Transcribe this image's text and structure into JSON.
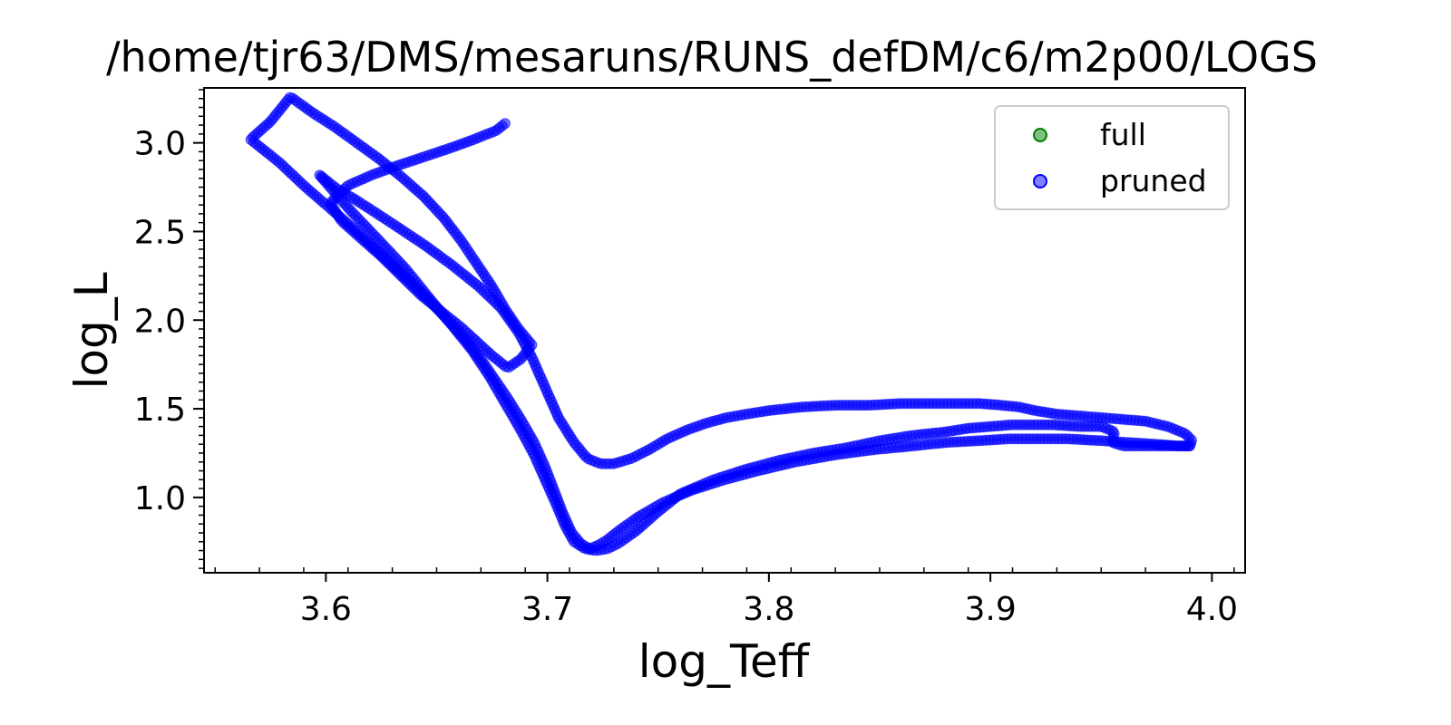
{
  "chart_data": {
    "type": "scatter",
    "title": "/home/tjr63/DMS/mesaruns/RUNS_defDM/c6/m2p00/LOGS",
    "xlabel": "log_Teff",
    "ylabel": "log_L",
    "xlim": [
      3.545,
      4.015
    ],
    "ylim": [
      0.575,
      3.31
    ],
    "x_ticks": [
      "3.6",
      "3.7",
      "3.8",
      "3.9",
      "4.0"
    ],
    "y_ticks": [
      "1.0",
      "1.5",
      "2.0",
      "2.5",
      "3.0"
    ],
    "grid": false,
    "legend_position": "top-right",
    "series": [
      {
        "name": "full",
        "color": "#008000",
        "visible_points": false,
        "x": [],
        "y": []
      },
      {
        "name": "pruned",
        "color": "#0000ff",
        "path_log_Teff": [
          3.99,
          3.988,
          3.984,
          3.978,
          3.97,
          3.96,
          3.955,
          3.956,
          3.95,
          3.94,
          3.928,
          3.918,
          3.91,
          3.9,
          3.89,
          3.88,
          3.865,
          3.85,
          3.835,
          3.82,
          3.805,
          3.79,
          3.775,
          3.76,
          3.75,
          3.74,
          3.732,
          3.727,
          3.722,
          3.717,
          3.712,
          3.708,
          3.704,
          3.699,
          3.694,
          3.688,
          3.681,
          3.674,
          3.666,
          3.657,
          3.647,
          3.636,
          3.624,
          3.611,
          3.597,
          3.605,
          3.612,
          3.622,
          3.633,
          3.645,
          3.657,
          3.669,
          3.679,
          3.687,
          3.693,
          3.699,
          3.705,
          3.712,
          3.718,
          3.724,
          3.73,
          3.738,
          3.746,
          3.754,
          3.763,
          3.772,
          3.781,
          3.79,
          3.8,
          3.815,
          3.83,
          3.845,
          3.86,
          3.872,
          3.884,
          3.895,
          3.905,
          3.913,
          3.92,
          3.93,
          3.94,
          3.95,
          3.96,
          3.97,
          3.98,
          3.988,
          3.991,
          3.99,
          3.985,
          3.975,
          3.962,
          3.95,
          3.935,
          3.92,
          3.908,
          3.895,
          3.88,
          3.865,
          3.848,
          3.83,
          3.812,
          3.795,
          3.78,
          3.765,
          3.752,
          3.741,
          3.732,
          3.727,
          3.723,
          3.719,
          3.715,
          3.711,
          3.707,
          3.703,
          3.699,
          3.694,
          3.688,
          3.682,
          3.676,
          3.67,
          3.663,
          3.655,
          3.646,
          3.636,
          3.625,
          3.614,
          3.602,
          3.59,
          3.579,
          3.566,
          3.575,
          3.584,
          3.594,
          3.604,
          3.614,
          3.624,
          3.634,
          3.644,
          3.653,
          3.661,
          3.668,
          3.675,
          3.681,
          3.687,
          3.693,
          3.688,
          3.682,
          3.675,
          3.668,
          3.661,
          3.652,
          3.643,
          3.634,
          3.625,
          3.616,
          3.607,
          3.602,
          3.61,
          3.621,
          3.632,
          3.644,
          3.656,
          3.667,
          3.677,
          3.681
        ],
        "path_log_L": [
          1.29,
          1.29,
          1.29,
          1.29,
          1.29,
          1.29,
          1.31,
          1.37,
          1.4,
          1.4,
          1.41,
          1.41,
          1.41,
          1.4,
          1.39,
          1.37,
          1.35,
          1.32,
          1.28,
          1.25,
          1.21,
          1.16,
          1.1,
          1.02,
          0.92,
          0.81,
          0.74,
          0.71,
          0.7,
          0.71,
          0.75,
          0.84,
          0.96,
          1.1,
          1.24,
          1.38,
          1.53,
          1.68,
          1.83,
          1.97,
          2.12,
          2.29,
          2.45,
          2.62,
          2.82,
          2.74,
          2.69,
          2.61,
          2.52,
          2.42,
          2.31,
          2.19,
          2.07,
          1.93,
          1.79,
          1.62,
          1.45,
          1.31,
          1.22,
          1.19,
          1.19,
          1.22,
          1.27,
          1.33,
          1.38,
          1.42,
          1.45,
          1.47,
          1.49,
          1.51,
          1.52,
          1.52,
          1.53,
          1.53,
          1.53,
          1.53,
          1.52,
          1.51,
          1.49,
          1.47,
          1.46,
          1.45,
          1.44,
          1.43,
          1.4,
          1.36,
          1.32,
          1.29,
          1.29,
          1.3,
          1.31,
          1.32,
          1.33,
          1.33,
          1.33,
          1.32,
          1.31,
          1.29,
          1.27,
          1.24,
          1.2,
          1.15,
          1.1,
          1.04,
          0.97,
          0.89,
          0.81,
          0.76,
          0.73,
          0.71,
          0.74,
          0.8,
          0.91,
          1.04,
          1.17,
          1.31,
          1.44,
          1.56,
          1.67,
          1.78,
          1.89,
          2.0,
          2.12,
          2.24,
          2.37,
          2.5,
          2.63,
          2.76,
          2.89,
          3.02,
          3.12,
          3.26,
          3.17,
          3.09,
          3.0,
          2.91,
          2.81,
          2.7,
          2.58,
          2.45,
          2.32,
          2.19,
          2.06,
          1.95,
          1.86,
          1.78,
          1.73,
          1.8,
          1.88,
          1.96,
          2.05,
          2.14,
          2.25,
          2.36,
          2.46,
          2.56,
          2.66,
          2.76,
          2.82,
          2.87,
          2.92,
          2.97,
          3.02,
          3.07,
          3.11,
          3.15,
          3.18
        ]
      }
    ]
  }
}
